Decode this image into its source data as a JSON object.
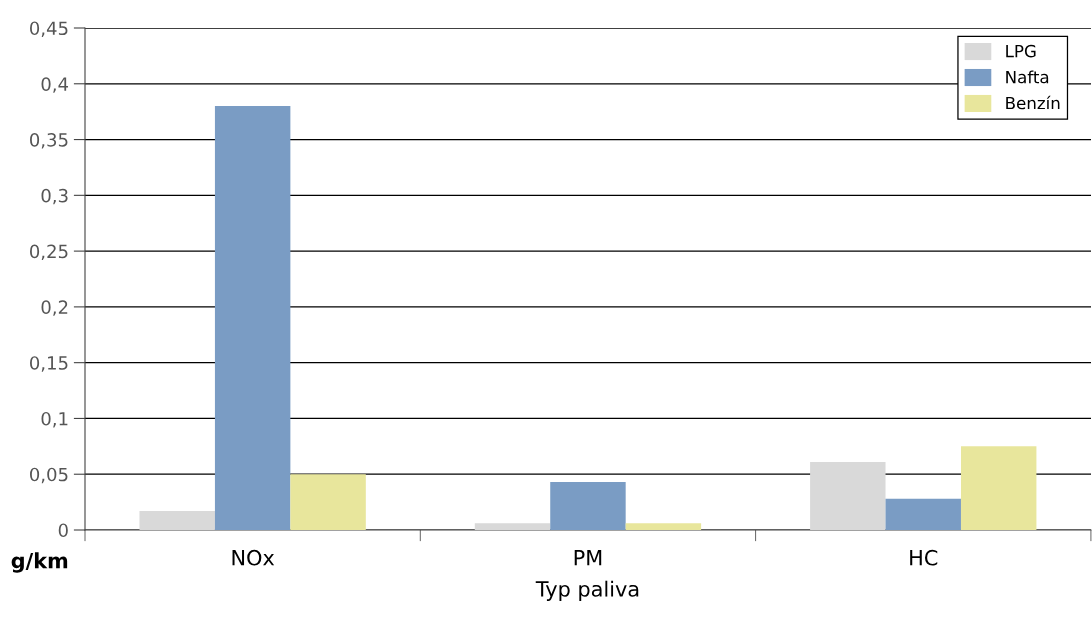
{
  "chart_data": {
    "type": "bar",
    "xlabel": "Typ paliva",
    "ylabel": "g/km",
    "categories": [
      "NOx",
      "PM",
      "HC"
    ],
    "series": [
      {
        "name": "LPG",
        "color": "#d9d9d9",
        "values": [
          0.017,
          0.006,
          0.061
        ]
      },
      {
        "name": "Nafta",
        "color": "#7a9cc4",
        "values": [
          0.38,
          0.043,
          0.028
        ]
      },
      {
        "name": "Benzín",
        "color": "#e8e69c",
        "values": [
          0.05,
          0.006,
          0.075
        ]
      }
    ],
    "ylim": [
      0,
      0.45
    ],
    "yticks": [
      {
        "value": 0,
        "label": "0"
      },
      {
        "value": 0.05,
        "label": "0,05"
      },
      {
        "value": 0.1,
        "label": "0,1"
      },
      {
        "value": 0.15,
        "label": "0,15"
      },
      {
        "value": 0.2,
        "label": "0,2"
      },
      {
        "value": 0.25,
        "label": "0,25"
      },
      {
        "value": 0.3,
        "label": "0,3"
      },
      {
        "value": 0.35,
        "label": "0,35"
      },
      {
        "value": 0.4,
        "label": "0,4"
      },
      {
        "value": 0.45,
        "label": "0,45"
      }
    ],
    "grid": "y",
    "legend": "top right"
  }
}
